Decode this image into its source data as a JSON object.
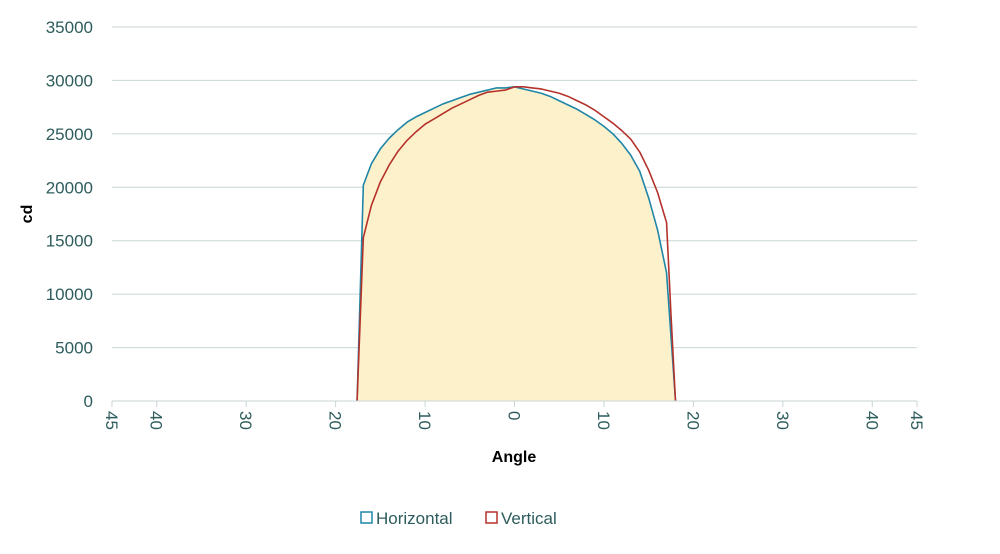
{
  "chart_data": {
    "type": "line",
    "xlabel": "Angle",
    "ylabel": "cd",
    "xlim": [
      -45,
      45
    ],
    "ylim": [
      0,
      35000
    ],
    "y_ticks": [
      "0",
      "5000",
      "10000",
      "15000",
      "20000",
      "25000",
      "30000",
      "35000"
    ],
    "x_ticks": [
      {
        "value": -45,
        "label": "45"
      },
      {
        "value": -40,
        "label": "40"
      },
      {
        "value": -30,
        "label": "30"
      },
      {
        "value": -20,
        "label": "20"
      },
      {
        "value": -10,
        "label": "10"
      },
      {
        "value": 0,
        "label": "0"
      },
      {
        "value": 10,
        "label": "10"
      },
      {
        "value": 20,
        "label": "20"
      },
      {
        "value": 30,
        "label": "30"
      },
      {
        "value": 40,
        "label": "40"
      },
      {
        "value": 45,
        "label": "45"
      }
    ],
    "grid": "horizontal",
    "legend_position": "bottom",
    "fill_color": "#fdf1cc",
    "series": [
      {
        "name": "Horizontal",
        "color": "#1f86a8",
        "x": [
          -17.6,
          -16.9,
          -16,
          -15,
          -14,
          -13,
          -12,
          -11,
          -10,
          -9,
          -8,
          -7,
          -6,
          -5,
          -4,
          -3,
          -2,
          -1,
          0,
          1,
          2,
          3,
          4,
          5,
          6,
          7,
          8,
          9,
          10,
          11,
          12,
          13,
          14,
          15,
          16,
          17,
          17.5,
          18
        ],
        "y": [
          0,
          20200,
          22200,
          23600,
          24600,
          25400,
          26100,
          26600,
          27000,
          27400,
          27800,
          28100,
          28400,
          28700,
          28900,
          29100,
          29300,
          29300,
          29400,
          29200,
          29000,
          28800,
          28500,
          28100,
          27700,
          27300,
          26800,
          26300,
          25700,
          25000,
          24100,
          23000,
          21500,
          19000,
          16000,
          12000,
          6000,
          0
        ]
      },
      {
        "name": "Vertical",
        "color": "#b5322b",
        "x": [
          -17.6,
          -16.9,
          -16,
          -15,
          -14,
          -13,
          -12,
          -11,
          -10,
          -9,
          -8,
          -7,
          -6,
          -5,
          -4,
          -3,
          -2,
          -1,
          0,
          1,
          2,
          3,
          4,
          5,
          6,
          7,
          8,
          9,
          10,
          11,
          12,
          13,
          14,
          15,
          16,
          17,
          17.5,
          18
        ],
        "y": [
          0,
          15300,
          18300,
          20500,
          22100,
          23400,
          24400,
          25200,
          25900,
          26400,
          26900,
          27400,
          27800,
          28200,
          28600,
          28900,
          29000,
          29100,
          29400,
          29400,
          29300,
          29200,
          29000,
          28800,
          28500,
          28100,
          27700,
          27200,
          26600,
          26000,
          25300,
          24500,
          23300,
          21600,
          19500,
          16700,
          8000,
          0
        ]
      }
    ]
  }
}
